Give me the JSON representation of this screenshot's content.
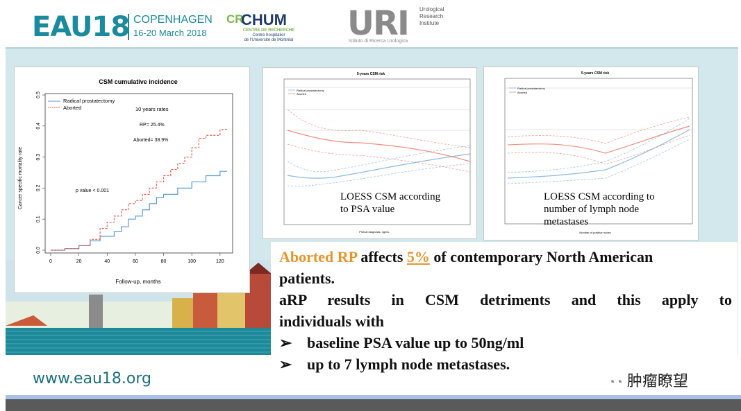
{
  "header": {
    "eau_logo": "EAU18",
    "eau_city": "COPENHAGEN",
    "eau_dates": "16-20 March 2018",
    "crchum_cr": "CR",
    "crchum_name": "CHUM",
    "crchum_sub_1": "CENTRE DE RECHERCHE",
    "crchum_sub_2": "Centre hospitalier",
    "crchum_sub_3": "de l'Université de Montréal",
    "uri_logo": "URI",
    "uri_side_1": "Urological",
    "uri_side_2": "Research",
    "uri_side_3": "Institute",
    "uri_sub": "Istituto di Ricerca Urologica"
  },
  "chart_data": [
    {
      "type": "line",
      "title": "CSM cumulative incidence",
      "xlabel": "Follow-up, months",
      "ylabel": "Cancer specific mortality rate",
      "xlim": [
        0,
        125
      ],
      "ylim": [
        0,
        0.5
      ],
      "xticks": [
        "0",
        "20",
        "40",
        "60",
        "80",
        "100",
        "120"
      ],
      "yticks": [
        "0.0",
        "0.1",
        "0.2",
        "0.3",
        "0.4",
        "0.5"
      ],
      "legend": [
        "Radical prostatectomy",
        "Aborted"
      ],
      "annotations": [
        "10 years rates",
        "RP= 25.4%",
        "Aborted= 38.9%",
        "p value < 0.001"
      ],
      "series": [
        {
          "name": "Radical prostatectomy",
          "color": "#5b9bd5",
          "x": [
            0,
            10,
            20,
            28,
            35,
            45,
            50,
            55,
            60,
            65,
            70,
            75,
            80,
            90,
            100,
            110,
            120,
            125
          ],
          "y": [
            0,
            0.005,
            0.015,
            0.03,
            0.045,
            0.06,
            0.075,
            0.1,
            0.11,
            0.13,
            0.15,
            0.17,
            0.18,
            0.2,
            0.22,
            0.24,
            0.254,
            0.254
          ]
        },
        {
          "name": "Aborted",
          "color": "#e8604c",
          "x": [
            0,
            10,
            20,
            28,
            35,
            40,
            45,
            50,
            55,
            60,
            65,
            70,
            75,
            80,
            85,
            90,
            95,
            100,
            105,
            110,
            115,
            120,
            125
          ],
          "y": [
            0,
            0.005,
            0.015,
            0.035,
            0.07,
            0.09,
            0.11,
            0.13,
            0.15,
            0.16,
            0.18,
            0.2,
            0.22,
            0.24,
            0.26,
            0.28,
            0.3,
            0.33,
            0.36,
            0.37,
            0.37,
            0.389,
            0.389
          ]
        }
      ]
    },
    {
      "type": "line",
      "title": "5-years CSM risk",
      "xlabel": "PSA at diagnosis, ng/mL",
      "legend": [
        "Radical prostatectomy",
        "Aborted"
      ],
      "caption_1": "LOESS CSM according",
      "caption_2": "to PSA value"
    },
    {
      "type": "line",
      "title": "5-years CSM risk",
      "xlabel": "Number of positive nodes",
      "legend": [
        "Radical prostatectomy",
        "Aborted"
      ],
      "caption_1": "LOESS CSM according to",
      "caption_2": "number of lymph node",
      "caption_3": "metastases"
    }
  ],
  "body": {
    "line1_a": "Aborted RP",
    "line1_b": " affects ",
    "line1_c": "5%",
    "line1_d": " of contemporary North American",
    "line2": "patients.",
    "line3": "aRP results in CSM detriments and this apply to",
    "line4": "individuals with",
    "bullet1": "baseline PSA value up to 50ng/ml",
    "bullet2": "up to 7 lymph node metastases.",
    "bullet_glyph": "➢"
  },
  "footer": {
    "website": "www.eau18.org",
    "wechat": "肿瘤瞭望"
  },
  "colors": {
    "teal": "#1a8a9d",
    "orange": "#e8952b",
    "band": "#d3e8ec"
  }
}
